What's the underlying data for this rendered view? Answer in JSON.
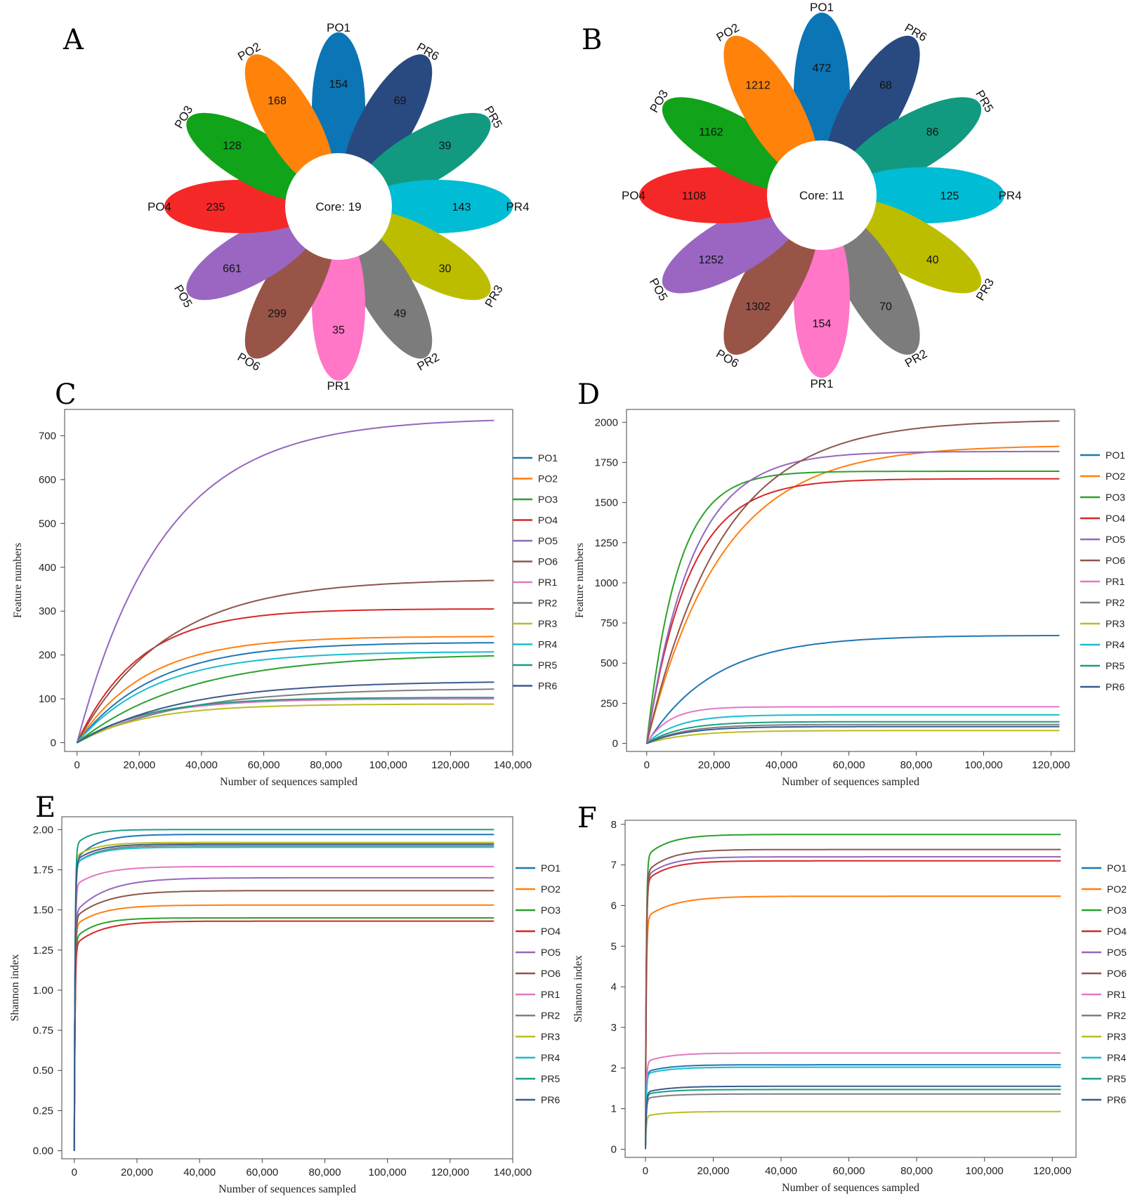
{
  "panel_letters": [
    "A",
    "B",
    "C",
    "D",
    "E",
    "F"
  ],
  "colors": {
    "PO1": "#1f77b4",
    "PO2": "#ff7f0e",
    "PO3": "#2ca02c",
    "PO4": "#d62728",
    "PO5": "#9467bd",
    "PO6": "#8c564b",
    "PR1": "#e377c2",
    "PR2": "#7f7f7f",
    "PR3": "#bcbd22",
    "PR4": "#17becf",
    "PR5": "#1a9e86",
    "PR6": "#3b5a8c"
  },
  "chart_data": [
    {
      "panel": "A",
      "type": "flower",
      "core_label": "Core: 19",
      "petals": [
        {
          "label": "PO1",
          "value": 154,
          "color": "#0b75b5"
        },
        {
          "label": "PR6",
          "value": 69,
          "color": "#284a80"
        },
        {
          "label": "PR5",
          "value": 39,
          "color": "#119a80"
        },
        {
          "label": "PR4",
          "value": 143,
          "color": "#00bcd4"
        },
        {
          "label": "PR3",
          "value": 30,
          "color": "#bdbd00"
        },
        {
          "label": "PR2",
          "value": 49,
          "color": "#7c7c7c"
        },
        {
          "label": "PR1",
          "value": 35,
          "color": "#ff77c6"
        },
        {
          "label": "PO6",
          "value": 299,
          "color": "#995448"
        },
        {
          "label": "PO5",
          "value": 661,
          "color": "#9a66c2"
        },
        {
          "label": "PO4",
          "value": 235,
          "color": "#f52828"
        },
        {
          "label": "PO3",
          "value": 128,
          "color": "#11a31a"
        },
        {
          "label": "PO2",
          "value": 168,
          "color": "#ff820b"
        }
      ]
    },
    {
      "panel": "B",
      "type": "flower",
      "core_label": "Core: 11",
      "petals": [
        {
          "label": "PO1",
          "value": 472,
          "color": "#0b75b5"
        },
        {
          "label": "PR6",
          "value": 68,
          "color": "#284a80"
        },
        {
          "label": "PR5",
          "value": 86,
          "color": "#119a80"
        },
        {
          "label": "PR4",
          "value": 125,
          "color": "#00bcd4"
        },
        {
          "label": "PR3",
          "value": 40,
          "color": "#bdbd00"
        },
        {
          "label": "PR2",
          "value": 70,
          "color": "#7c7c7c"
        },
        {
          "label": "PR1",
          "value": 154,
          "color": "#ff77c6"
        },
        {
          "label": "PO6",
          "value": 1302,
          "color": "#995448"
        },
        {
          "label": "PO5",
          "value": 1252,
          "color": "#9a66c2"
        },
        {
          "label": "PO4",
          "value": 1108,
          "color": "#f52828"
        },
        {
          "label": "PO3",
          "value": 1162,
          "color": "#11a31a"
        },
        {
          "label": "PO2",
          "value": 1212,
          "color": "#ff820b"
        }
      ]
    },
    {
      "panel": "C",
      "type": "line",
      "xlabel": "Number of sequences sampled",
      "ylabel": "Feature numbers",
      "xlim": [
        -4000,
        140000
      ],
      "ylim": [
        -20,
        760
      ],
      "xticks": [
        0,
        20000,
        40000,
        60000,
        80000,
        100000,
        120000,
        140000
      ],
      "xtick_labels": [
        "0",
        "20,000",
        "40,000",
        "60,000",
        "80,000",
        "100,000",
        "120,000",
        "140,000"
      ],
      "yticks": [
        0,
        100,
        200,
        300,
        400,
        500,
        600,
        700
      ],
      "ytick_labels": [
        "0",
        "100",
        "200",
        "300",
        "400",
        "500",
        "600",
        "700"
      ],
      "x_end": 134000,
      "series": [
        {
          "name": "PO1",
          "final": 228,
          "k": 4e-05,
          "start": 0
        },
        {
          "name": "PO2",
          "final": 242,
          "k": 4.5e-05,
          "start": 0
        },
        {
          "name": "PO3",
          "final": 198,
          "k": 2.8e-05,
          "start": 0
        },
        {
          "name": "PO4",
          "final": 305,
          "k": 5e-05,
          "start": 0
        },
        {
          "name": "PO5",
          "final": 735,
          "k": 3.6e-05,
          "start": 0
        },
        {
          "name": "PO6",
          "final": 370,
          "k": 3.5e-05,
          "start": 0
        },
        {
          "name": "PR1",
          "final": 100,
          "k": 4.5e-05,
          "start": 0
        },
        {
          "name": "PR2",
          "final": 122,
          "k": 3e-05,
          "start": 0
        },
        {
          "name": "PR3",
          "final": 88,
          "k": 4.5e-05,
          "start": 0
        },
        {
          "name": "PR4",
          "final": 207,
          "k": 4e-05,
          "start": 0
        },
        {
          "name": "PR5",
          "final": 103,
          "k": 4.5e-05,
          "start": 0
        },
        {
          "name": "PR6",
          "final": 138,
          "k": 3e-05,
          "start": 0
        }
      ]
    },
    {
      "panel": "D",
      "type": "line",
      "xlabel": "Number of sequences sampled",
      "ylabel": "Feature numbers",
      "xlim": [
        -6000,
        127000
      ],
      "ylim": [
        -50,
        2080
      ],
      "xticks": [
        0,
        20000,
        40000,
        60000,
        80000,
        100000,
        120000
      ],
      "xtick_labels": [
        "0",
        "20,000",
        "40,000",
        "60,000",
        "80,000",
        "100,000",
        "120,000"
      ],
      "yticks": [
        0,
        250,
        500,
        750,
        1000,
        1250,
        1500,
        1750,
        2000
      ],
      "ytick_labels": [
        "0",
        "250",
        "500",
        "750",
        "1000",
        "1250",
        "1500",
        "1750",
        "2000"
      ],
      "x_end": 122500,
      "series": [
        {
          "name": "PO1",
          "final": 672,
          "k": 5e-05,
          "start": 0
        },
        {
          "name": "PO2",
          "final": 1850,
          "k": 4.5e-05,
          "start": 0
        },
        {
          "name": "PO3",
          "final": 1695,
          "k": 0.00011,
          "start": 0
        },
        {
          "name": "PO4",
          "final": 1648,
          "k": 8e-05,
          "start": 0
        },
        {
          "name": "PO5",
          "final": 1818,
          "k": 7.5e-05,
          "start": 0
        },
        {
          "name": "PO6",
          "final": 2008,
          "k": 4.5e-05,
          "start": 0
        },
        {
          "name": "PR1",
          "final": 228,
          "k": 0.00015,
          "start": 0
        },
        {
          "name": "PR2",
          "final": 118,
          "k": 9e-05,
          "start": 0
        },
        {
          "name": "PR3",
          "final": 80,
          "k": 8e-05,
          "start": 0
        },
        {
          "name": "PR4",
          "final": 178,
          "k": 0.00011,
          "start": 0
        },
        {
          "name": "PR5",
          "final": 135,
          "k": 0.0001,
          "start": 0
        },
        {
          "name": "PR6",
          "final": 105,
          "k": 9e-05,
          "start": 0
        }
      ]
    },
    {
      "panel": "E",
      "type": "line",
      "xlabel": "Number of sequences sampled",
      "ylabel": "Shannon index",
      "xlim": [
        -4000,
        140000
      ],
      "ylim": [
        -0.05,
        2.08
      ],
      "xticks": [
        0,
        20000,
        40000,
        60000,
        80000,
        100000,
        120000,
        140000
      ],
      "xtick_labels": [
        "0",
        "20,000",
        "40,000",
        "60,000",
        "80,000",
        "100,000",
        "120,000",
        "140,000"
      ],
      "yticks": [
        0,
        0.25,
        0.5,
        0.75,
        1.0,
        1.25,
        1.5,
        1.75,
        2.0
      ],
      "ytick_labels": [
        "0.00",
        "0.25",
        "0.50",
        "0.75",
        "1.00",
        "1.25",
        "1.50",
        "1.75",
        "2.00"
      ],
      "x_end": 134000,
      "series": [
        {
          "name": "PO1",
          "final": 1.97,
          "k": 0.00015,
          "start": 1.8
        },
        {
          "name": "PO2",
          "final": 1.53,
          "k": 0.00012,
          "start": 1.4
        },
        {
          "name": "PO3",
          "final": 1.45,
          "k": 0.00015,
          "start": 1.32
        },
        {
          "name": "PO4",
          "final": 1.43,
          "k": 0.00012,
          "start": 1.28
        },
        {
          "name": "PO5",
          "final": 1.7,
          "k": 0.0001,
          "start": 1.48
        },
        {
          "name": "PO6",
          "final": 1.62,
          "k": 0.0001,
          "start": 1.45
        },
        {
          "name": "PR1",
          "final": 1.77,
          "k": 0.00012,
          "start": 1.65
        },
        {
          "name": "PR2",
          "final": 1.9,
          "k": 0.00015,
          "start": 1.78
        },
        {
          "name": "PR3",
          "final": 1.92,
          "k": 0.00015,
          "start": 1.83
        },
        {
          "name": "PR4",
          "final": 1.89,
          "k": 0.00015,
          "start": 1.78
        },
        {
          "name": "PR5",
          "final": 2.0,
          "k": 0.0002,
          "start": 1.9
        },
        {
          "name": "PR6",
          "final": 1.91,
          "k": 0.00015,
          "start": 1.8
        }
      ]
    },
    {
      "panel": "F",
      "type": "line",
      "xlabel": "Number of sequences sampled",
      "ylabel": "Shannon index",
      "xlim": [
        -6000,
        127000
      ],
      "ylim": [
        -0.2,
        8.1
      ],
      "xticks": [
        0,
        20000,
        40000,
        60000,
        80000,
        100000,
        120000
      ],
      "xtick_labels": [
        "0",
        "20,000",
        "40,000",
        "60,000",
        "80,000",
        "100,000",
        "120,000"
      ],
      "yticks": [
        0,
        1,
        2,
        3,
        4,
        5,
        6,
        7,
        8
      ],
      "ytick_labels": [
        "0",
        "1",
        "2",
        "3",
        "4",
        "5",
        "6",
        "7",
        "8"
      ],
      "x_end": 122500,
      "series": [
        {
          "name": "PO1",
          "final": 2.08,
          "k": 0.00015,
          "start": 1.9
        },
        {
          "name": "PO2",
          "final": 6.23,
          "k": 0.00012,
          "start": 5.7
        },
        {
          "name": "PO3",
          "final": 7.75,
          "k": 0.00015,
          "start": 7.2
        },
        {
          "name": "PO4",
          "final": 7.1,
          "k": 0.00015,
          "start": 6.6
        },
        {
          "name": "PO5",
          "final": 7.2,
          "k": 0.00015,
          "start": 6.7
        },
        {
          "name": "PO6",
          "final": 7.38,
          "k": 0.00015,
          "start": 6.8
        },
        {
          "name": "PR1",
          "final": 2.37,
          "k": 0.00015,
          "start": 2.15
        },
        {
          "name": "PR2",
          "final": 1.36,
          "k": 0.00015,
          "start": 1.25
        },
        {
          "name": "PR3",
          "final": 0.93,
          "k": 0.00015,
          "start": 0.82
        },
        {
          "name": "PR4",
          "final": 2.02,
          "k": 0.00015,
          "start": 1.85
        },
        {
          "name": "PR5",
          "final": 1.47,
          "k": 0.00015,
          "start": 1.35
        },
        {
          "name": "PR6",
          "final": 1.55,
          "k": 0.00015,
          "start": 1.4
        }
      ]
    }
  ]
}
